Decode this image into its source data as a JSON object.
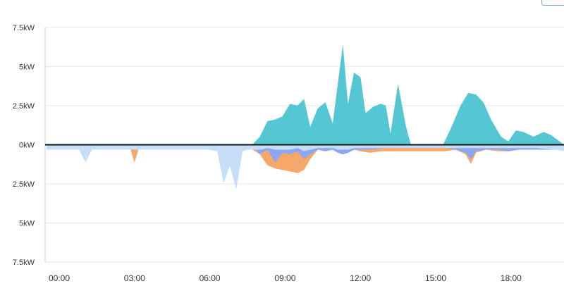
{
  "chart_data": {
    "type": "area",
    "title": "",
    "xlabel": "",
    "ylabel": "",
    "ylim": [
      -7.5,
      7.5
    ],
    "xlim": [
      -0.5,
      20.1
    ],
    "yticks": [
      {
        "value": 7.5,
        "label": "7.5kW"
      },
      {
        "value": 5,
        "label": "5kW"
      },
      {
        "value": 2.5,
        "label": "2.5kW"
      },
      {
        "value": 0,
        "label": "0kW"
      },
      {
        "value": -2.5,
        "label": "2.5kW"
      },
      {
        "value": -5,
        "label": "5kW"
      },
      {
        "value": -7.5,
        "label": "7.5kW"
      }
    ],
    "xticks": [
      {
        "value": 0,
        "label": "00:00"
      },
      {
        "value": 3,
        "label": "03:00"
      },
      {
        "value": 6,
        "label": "06:00"
      },
      {
        "value": 9,
        "label": "09:00"
      },
      {
        "value": 12,
        "label": "12:00"
      },
      {
        "value": 15,
        "label": "15:00"
      },
      {
        "value": 18,
        "label": "18:00"
      }
    ],
    "grid": true,
    "series": [
      {
        "color": "#aaf5c6",
        "points": [
          [
            0,
            0
          ],
          [
            7.7,
            0
          ],
          [
            8.0,
            0.4
          ],
          [
            8.3,
            0.9
          ],
          [
            8.6,
            0.7
          ],
          [
            8.9,
            1.0
          ],
          [
            9.2,
            0.8
          ],
          [
            9.5,
            1.1
          ],
          [
            9.75,
            0.2
          ],
          [
            10.0,
            0.8
          ],
          [
            10.3,
            1.8
          ],
          [
            10.6,
            2.1
          ],
          [
            10.9,
            1.2
          ],
          [
            11.1,
            2.8
          ],
          [
            11.3,
            4.1
          ],
          [
            11.5,
            2.1
          ],
          [
            11.75,
            4.2
          ],
          [
            12.0,
            3.0
          ],
          [
            12.2,
            1.6
          ],
          [
            12.5,
            2.4
          ],
          [
            12.8,
            2.6
          ],
          [
            13.0,
            2.5
          ],
          [
            13.2,
            0.6
          ],
          [
            13.5,
            3.8
          ],
          [
            13.8,
            1.2
          ],
          [
            14.0,
            0
          ],
          [
            20.1,
            0
          ]
        ]
      },
      {
        "color": "#55dd88",
        "points": [
          [
            0,
            0
          ],
          [
            7.7,
            0
          ],
          [
            8.0,
            0.5
          ],
          [
            8.3,
            1.4
          ],
          [
            8.6,
            1.5
          ],
          [
            8.9,
            1.8
          ],
          [
            9.2,
            2.0
          ],
          [
            9.5,
            2.2
          ],
          [
            9.75,
            0.5
          ],
          [
            10.0,
            1.0
          ],
          [
            10.3,
            2.0
          ],
          [
            10.6,
            2.3
          ],
          [
            10.9,
            1.3
          ],
          [
            11.1,
            3.2
          ],
          [
            11.3,
            4.6
          ],
          [
            11.5,
            2.3
          ],
          [
            11.75,
            4.3
          ],
          [
            12.0,
            3.4
          ],
          [
            12.2,
            1.8
          ],
          [
            12.5,
            2.4
          ],
          [
            12.8,
            2.6
          ],
          [
            13.0,
            2.5
          ],
          [
            13.2,
            0.6
          ],
          [
            13.5,
            3.8
          ],
          [
            13.8,
            1.2
          ],
          [
            14.0,
            0
          ],
          [
            15.3,
            0
          ],
          [
            15.6,
            0.3
          ],
          [
            16.0,
            0.4
          ],
          [
            16.3,
            0.5
          ],
          [
            16.5,
            0.9
          ],
          [
            16.8,
            0.5
          ],
          [
            17.2,
            0.4
          ],
          [
            17.6,
            0.3
          ],
          [
            17.9,
            0.2
          ],
          [
            18.3,
            0.3
          ],
          [
            18.8,
            0.3
          ],
          [
            19.3,
            0.4
          ],
          [
            19.7,
            0.3
          ],
          [
            20.1,
            0
          ]
        ]
      },
      {
        "color": "#55c6d4",
        "points": [
          [
            0,
            0
          ],
          [
            7.7,
            0
          ],
          [
            8.0,
            0.5
          ],
          [
            8.3,
            1.5
          ],
          [
            8.6,
            1.6
          ],
          [
            8.9,
            1.8
          ],
          [
            9.2,
            2.6
          ],
          [
            9.5,
            2.5
          ],
          [
            9.75,
            2.9
          ],
          [
            10.0,
            1.1
          ],
          [
            10.3,
            2.3
          ],
          [
            10.6,
            2.7
          ],
          [
            10.9,
            1.3
          ],
          [
            11.1,
            3.8
          ],
          [
            11.3,
            6.3
          ],
          [
            11.5,
            2.5
          ],
          [
            11.75,
            4.6
          ],
          [
            12.0,
            4.3
          ],
          [
            12.2,
            2.0
          ],
          [
            12.5,
            2.4
          ],
          [
            12.8,
            2.6
          ],
          [
            13.0,
            2.5
          ],
          [
            13.2,
            0.6
          ],
          [
            13.5,
            3.8
          ],
          [
            13.8,
            1.2
          ],
          [
            14.0,
            0
          ],
          [
            15.3,
            0
          ],
          [
            15.6,
            1.0
          ],
          [
            16.0,
            2.5
          ],
          [
            16.3,
            3.3
          ],
          [
            16.6,
            3.2
          ],
          [
            16.9,
            2.7
          ],
          [
            17.2,
            1.6
          ],
          [
            17.6,
            0.5
          ],
          [
            17.9,
            0.2
          ],
          [
            18.2,
            0.9
          ],
          [
            18.5,
            0.8
          ],
          [
            18.9,
            0.5
          ],
          [
            19.3,
            0.8
          ],
          [
            19.6,
            0.6
          ],
          [
            20.1,
            0
          ]
        ]
      },
      {
        "color": "#f5a86a",
        "points": [
          [
            0,
            0
          ],
          [
            2.7,
            0
          ],
          [
            2.85,
            -0.3
          ],
          [
            3.0,
            -1.1
          ],
          [
            3.15,
            -0.3
          ],
          [
            3.3,
            0
          ],
          [
            6.5,
            0
          ],
          [
            6.75,
            -0.8
          ],
          [
            7.0,
            -0.3
          ],
          [
            7.2,
            0
          ],
          [
            7.7,
            -0.3
          ],
          [
            8.0,
            -0.6
          ],
          [
            8.3,
            -1.3
          ],
          [
            8.6,
            -1.5
          ],
          [
            8.9,
            -1.6
          ],
          [
            9.2,
            -1.7
          ],
          [
            9.5,
            -1.8
          ],
          [
            9.75,
            -1.6
          ],
          [
            10.0,
            -0.9
          ],
          [
            10.3,
            -0.3
          ],
          [
            10.6,
            -0.3
          ],
          [
            10.9,
            -0.3
          ],
          [
            11.1,
            -0.4
          ],
          [
            11.3,
            -0.6
          ],
          [
            11.5,
            -0.5
          ],
          [
            11.75,
            -0.3
          ],
          [
            12.0,
            -0.4
          ],
          [
            12.4,
            -0.5
          ],
          [
            12.8,
            -0.4
          ],
          [
            13.2,
            -0.4
          ],
          [
            13.6,
            -0.4
          ],
          [
            14.0,
            -0.4
          ],
          [
            14.5,
            -0.4
          ],
          [
            15.0,
            -0.4
          ],
          [
            15.4,
            -0.4
          ],
          [
            15.8,
            -0.3
          ],
          [
            16.2,
            -0.6
          ],
          [
            16.4,
            -1.2
          ],
          [
            16.6,
            -0.5
          ],
          [
            17.0,
            -0.3
          ],
          [
            17.5,
            -0.4
          ],
          [
            17.9,
            -0.4
          ],
          [
            18.3,
            -0.3
          ],
          [
            18.8,
            -0.3
          ],
          [
            19.3,
            -0.3
          ],
          [
            19.8,
            -0.3
          ],
          [
            20.1,
            -0.3
          ]
        ]
      },
      {
        "color": "#8aa7f2",
        "points": [
          [
            0,
            0
          ],
          [
            7.7,
            0
          ],
          [
            8.0,
            -0.6
          ],
          [
            8.3,
            -0.3
          ],
          [
            8.6,
            -1.1
          ],
          [
            8.9,
            -0.5
          ],
          [
            9.2,
            -0.6
          ],
          [
            9.5,
            -0.4
          ],
          [
            9.75,
            -0.9
          ],
          [
            10.0,
            -0.6
          ],
          [
            10.3,
            -0.3
          ],
          [
            10.6,
            -0.4
          ],
          [
            10.9,
            -0.3
          ],
          [
            11.1,
            -0.5
          ],
          [
            11.3,
            -0.6
          ],
          [
            11.5,
            -0.5
          ],
          [
            11.75,
            -0.3
          ],
          [
            12.0,
            -0.3
          ],
          [
            12.4,
            -0.3
          ],
          [
            13.0,
            -0.2
          ],
          [
            14.0,
            -0.2
          ],
          [
            15.0,
            -0.2
          ],
          [
            15.4,
            -0.2
          ],
          [
            15.8,
            -0.3
          ],
          [
            16.2,
            -0.5
          ],
          [
            16.4,
            -0.9
          ],
          [
            16.6,
            -0.4
          ],
          [
            17.0,
            -0.3
          ],
          [
            17.5,
            -0.3
          ],
          [
            17.9,
            -0.4
          ],
          [
            18.3,
            -0.3
          ],
          [
            18.8,
            -0.3
          ],
          [
            19.3,
            -0.3
          ],
          [
            19.8,
            -0.3
          ],
          [
            20.1,
            -0.3
          ]
        ]
      },
      {
        "color": "#c6def8",
        "points": [
          [
            -0.5,
            -0.3
          ],
          [
            0.5,
            -0.3
          ],
          [
            0.8,
            -0.3
          ],
          [
            1.05,
            -1.1
          ],
          [
            1.3,
            -0.3
          ],
          [
            2.0,
            -0.3
          ],
          [
            2.7,
            -0.3
          ],
          [
            3.3,
            -0.3
          ],
          [
            4.0,
            -0.3
          ],
          [
            5.0,
            -0.3
          ],
          [
            6.0,
            -0.3
          ],
          [
            6.3,
            -0.4
          ],
          [
            6.55,
            -2.4
          ],
          [
            6.8,
            -1.3
          ],
          [
            7.05,
            -2.8
          ],
          [
            7.3,
            -0.4
          ],
          [
            7.5,
            -0.3
          ],
          [
            7.7,
            -0.3
          ],
          [
            8.0,
            -0.3
          ],
          [
            8.3,
            -0.2
          ],
          [
            8.6,
            -0.3
          ],
          [
            8.9,
            -0.3
          ],
          [
            9.2,
            -0.3
          ],
          [
            9.5,
            -0.2
          ],
          [
            9.75,
            -0.4
          ],
          [
            10.0,
            -0.3
          ],
          [
            10.3,
            -0.2
          ],
          [
            10.6,
            -0.2
          ],
          [
            10.9,
            -0.2
          ],
          [
            11.1,
            -0.3
          ],
          [
            11.3,
            -0.3
          ],
          [
            11.5,
            -0.3
          ],
          [
            11.75,
            -0.2
          ],
          [
            12.0,
            -0.2
          ],
          [
            13.0,
            -0.2
          ],
          [
            14.0,
            -0.2
          ],
          [
            15.0,
            -0.2
          ],
          [
            16.0,
            -0.2
          ],
          [
            17.0,
            -0.2
          ],
          [
            18.0,
            -0.2
          ],
          [
            19.0,
            -0.2
          ],
          [
            19.8,
            -0.3
          ],
          [
            20.1,
            -0.4
          ]
        ]
      }
    ]
  },
  "colors": {
    "background": "#ffffff",
    "grid": "#e6e6e6",
    "zero_line": "#111111",
    "tick_text": "#333333"
  }
}
